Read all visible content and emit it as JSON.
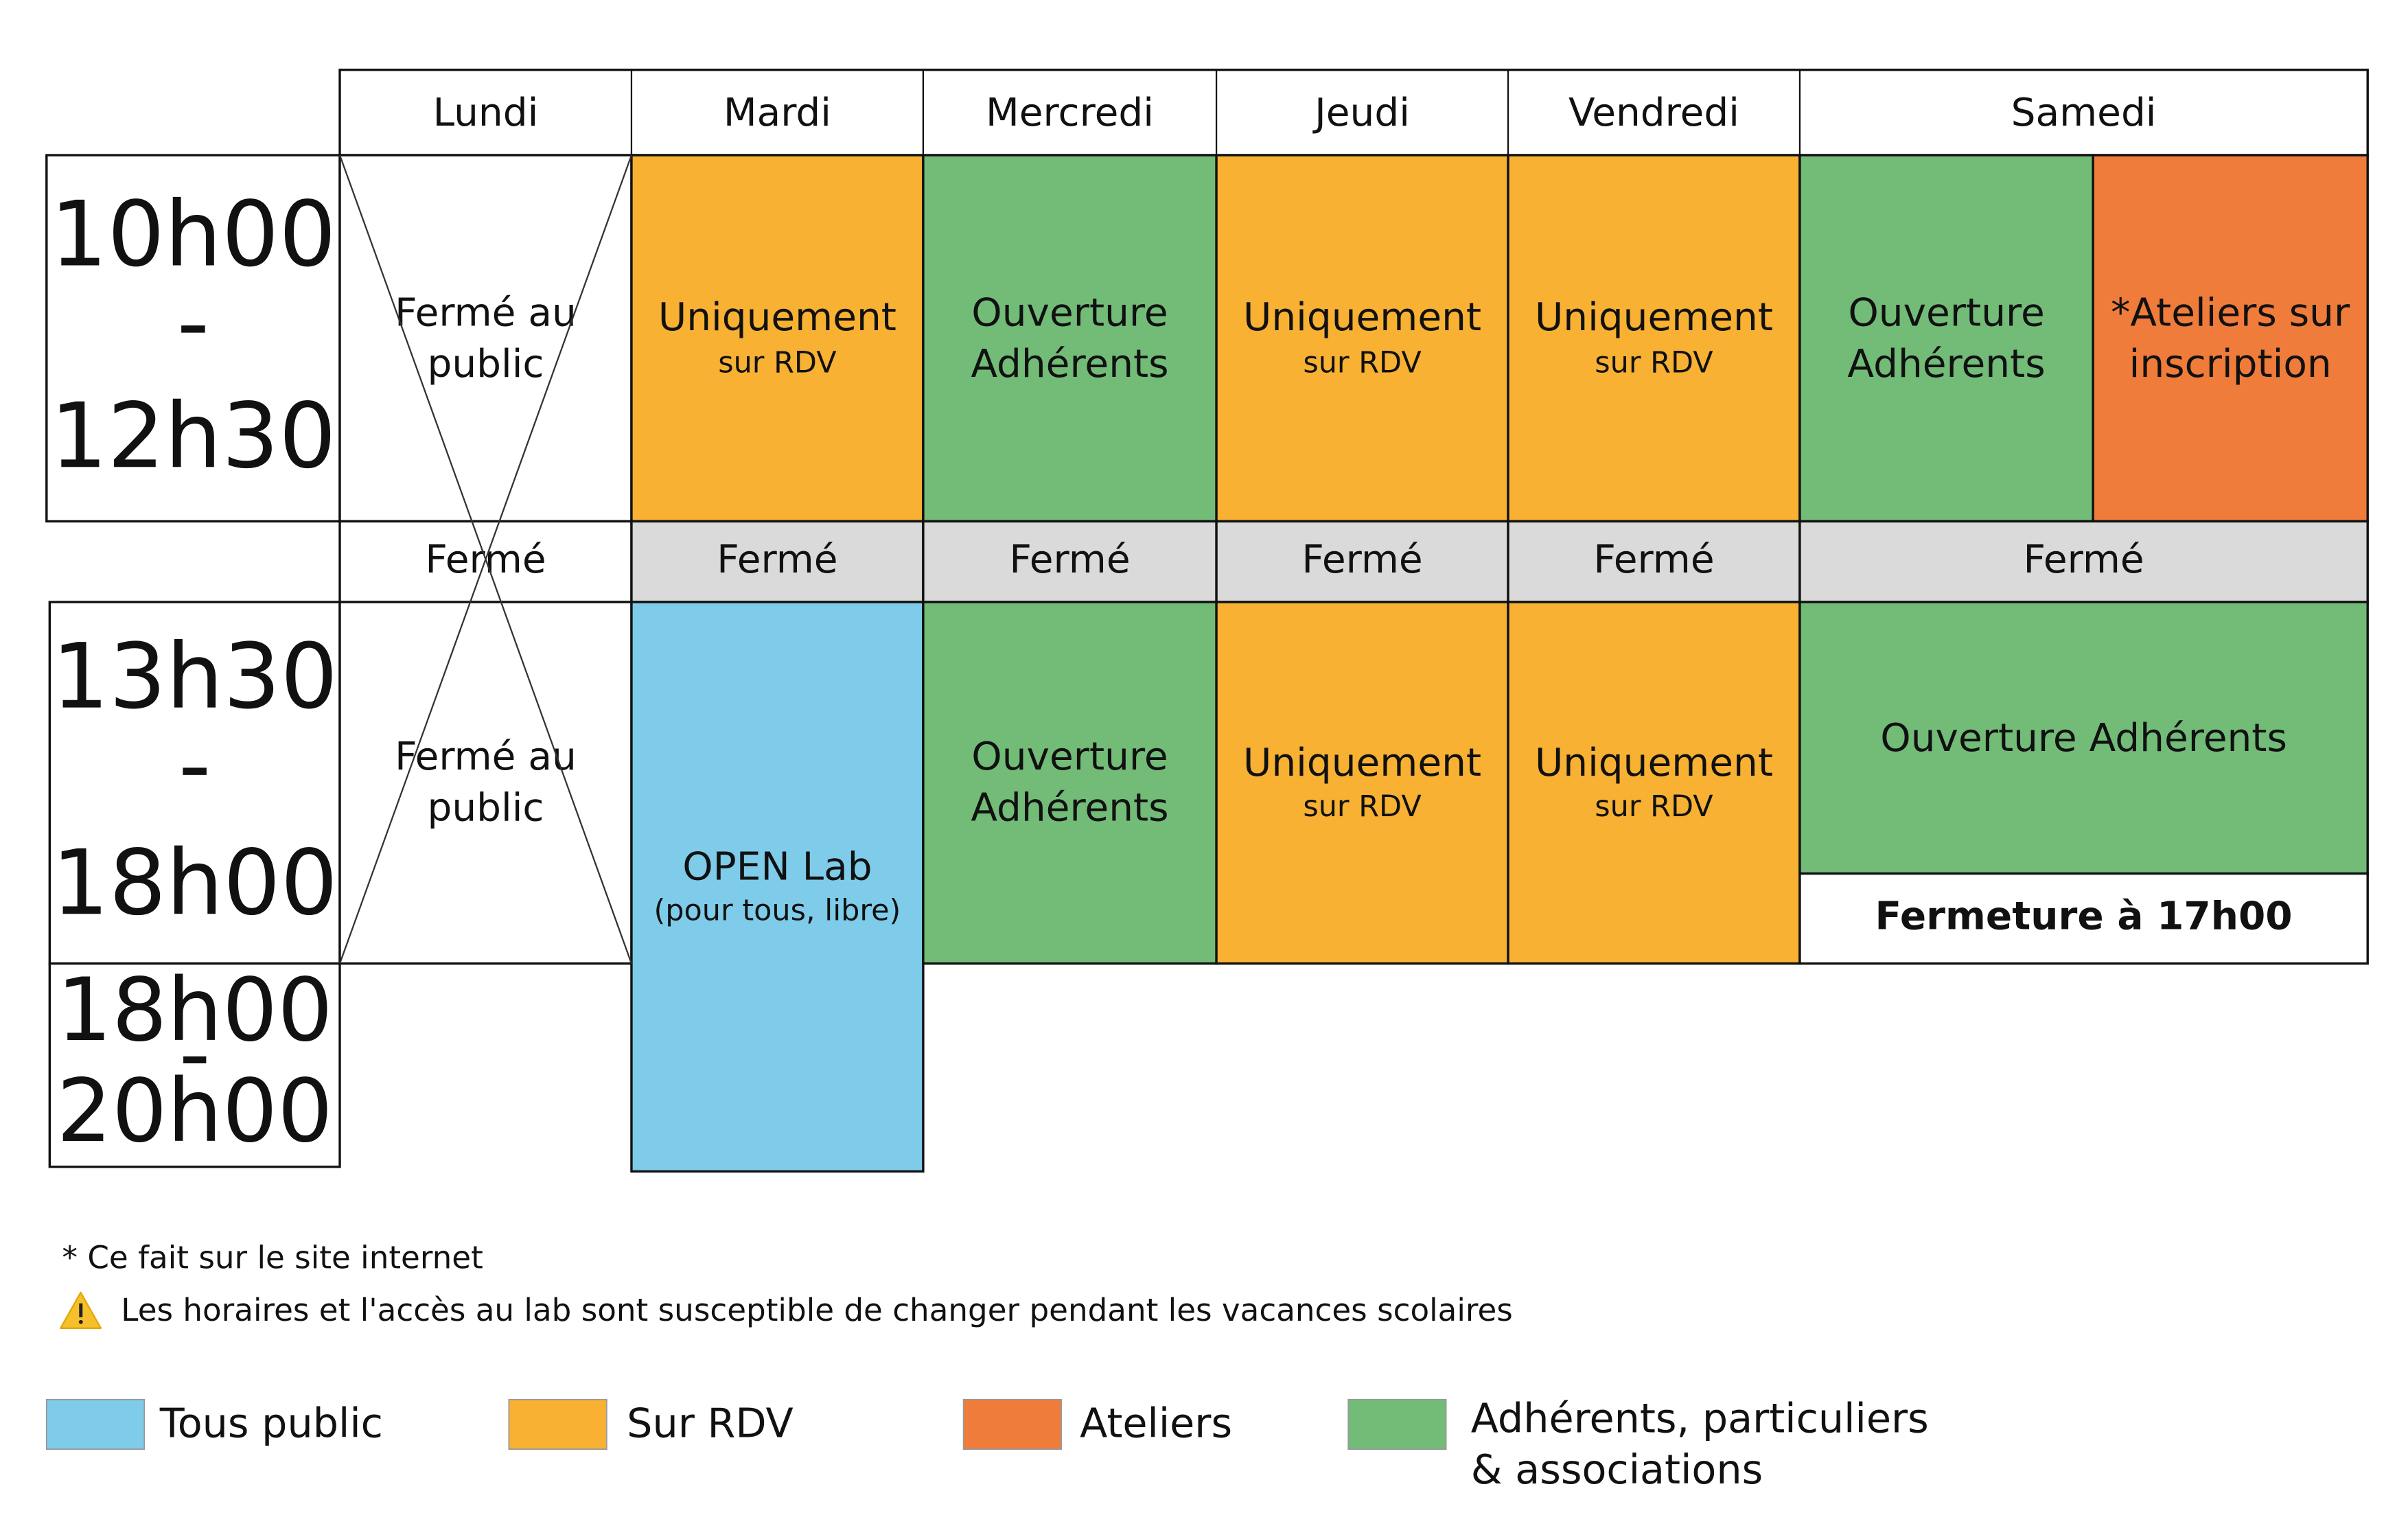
{
  "header": {
    "days": [
      "Lundi",
      "Mardi",
      "Mercredi",
      "Jeudi",
      "Vendredi",
      "Samedi"
    ]
  },
  "times": [
    [
      "10h00",
      "-",
      "12h30"
    ],
    [
      "13h30",
      "-",
      "18h00"
    ],
    [
      "18h00",
      "-",
      "20h00"
    ]
  ],
  "morning": [
    {
      "lines": [
        "Fermé au",
        "public"
      ]
    },
    {
      "lines": [
        "Uniquement"
      ],
      "sub": "sur RDV"
    },
    {
      "lines": [
        "Ouverture",
        "Adhérents"
      ]
    },
    {
      "lines": [
        "Uniquement"
      ],
      "sub": "sur RDV"
    },
    {
      "lines": [
        "Uniquement"
      ],
      "sub": "sur RDV"
    },
    {
      "lines": [
        "Ouverture",
        "Adhérents"
      ]
    },
    {
      "lines": [
        "*Ateliers sur",
        "inscription"
      ]
    }
  ],
  "lunch": [
    "Fermé",
    "Fermé",
    "Fermé",
    "Fermé",
    "Fermé",
    "Fermé"
  ],
  "afternoon": [
    {
      "lines": [
        "Fermé au",
        "public"
      ]
    },
    {
      "lines": [
        "OPEN Lab"
      ],
      "sub": "(pour tous, libre)"
    },
    {
      "lines": [
        "Ouverture",
        "Adhérents"
      ]
    },
    {
      "lines": [
        "Uniquement"
      ],
      "sub": "sur RDV"
    },
    {
      "lines": [
        "Uniquement"
      ],
      "sub": "sur RDV"
    },
    {
      "lines": [
        "Ouverture Adhérents"
      ]
    },
    {
      "lines": [
        "Fermeture à 17h00"
      ]
    }
  ],
  "notes": [
    "* Ce fait sur le site internet",
    "Les horaires et l'accès au lab sont susceptible de changer pendant les vacances scolaires"
  ],
  "legend": [
    {
      "lines": [
        "Tous public"
      ]
    },
    {
      "lines": [
        "Sur RDV"
      ]
    },
    {
      "lines": [
        "Ateliers"
      ]
    },
    {
      "lines": [
        "Adhérents, particuliers",
        "& associations"
      ]
    }
  ]
}
